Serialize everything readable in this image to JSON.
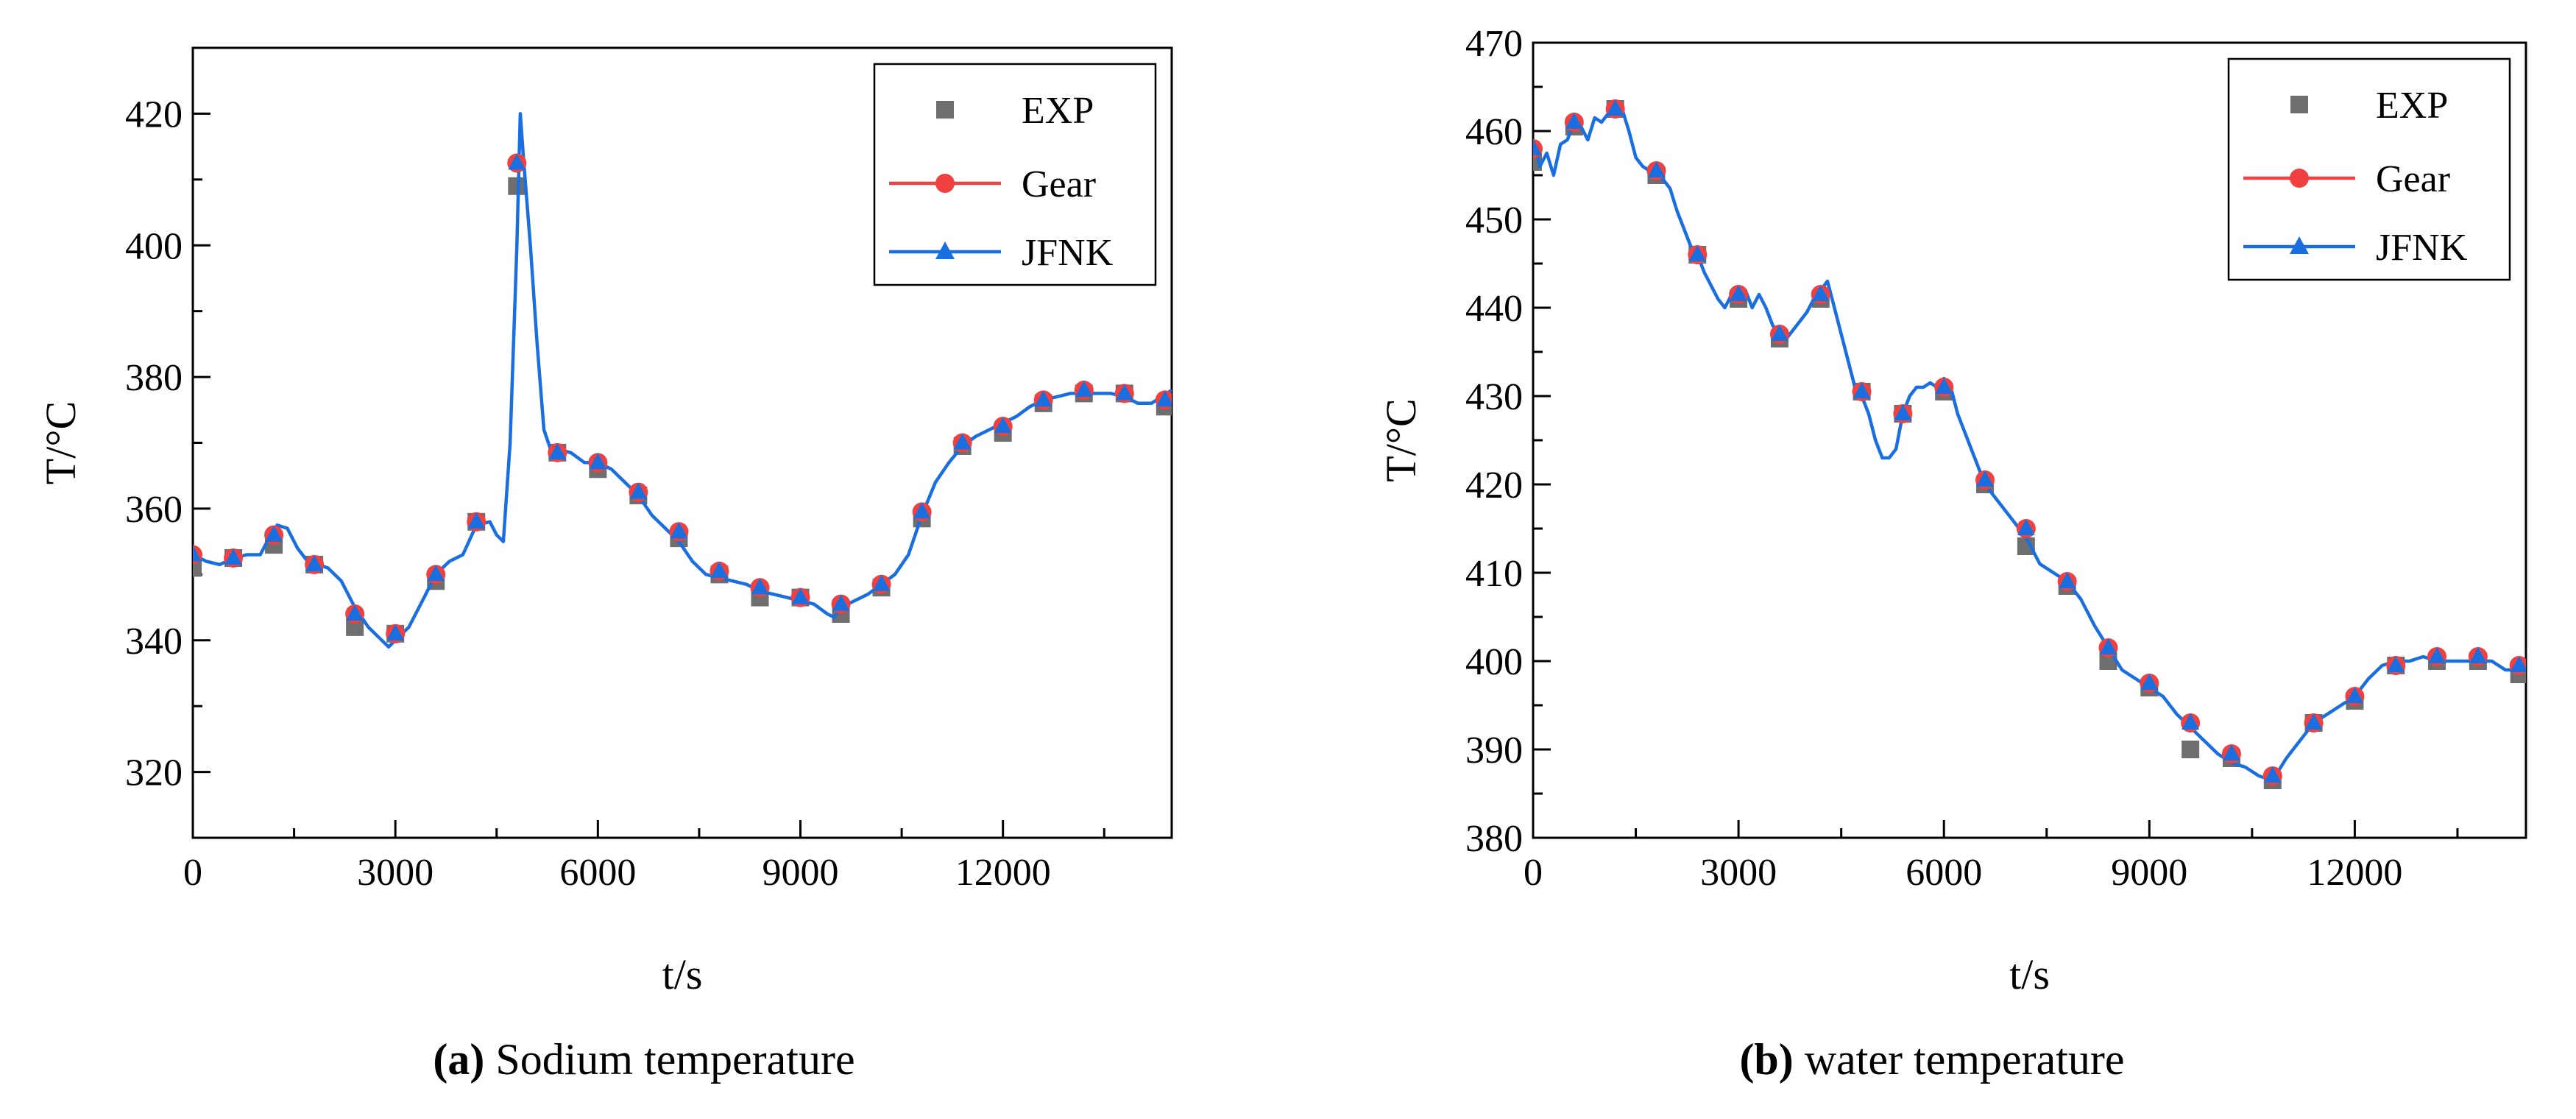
{
  "colors": {
    "exp": "#6e6e6e",
    "gear": "#f04040",
    "jfnk": "#1a6fe0",
    "axis": "#000000"
  },
  "chart_data": [
    {
      "type": "line",
      "panel_letter": "a",
      "caption": {
        "letter": "(a)",
        "text": " Sodium temperature"
      },
      "xlabel": "t/s",
      "ylabel": "T/°C",
      "xlim": [
        0,
        14500
      ],
      "ylim": [
        310,
        430
      ],
      "xticks": [
        0,
        3000,
        6000,
        9000,
        12000
      ],
      "xtick_labels": [
        "0",
        "3000",
        "6000",
        "9000",
        "12000"
      ],
      "yticks": [
        320,
        340,
        360,
        380,
        400,
        420
      ],
      "ytick_labels": [
        "320",
        "340",
        "360",
        "380",
        "400",
        "420"
      ],
      "legend": {
        "position": "top-right",
        "entries": [
          "EXP",
          "Gear",
          "JFNK"
        ]
      },
      "jfnk_line": {
        "x": [
          0,
          200,
          400,
          600,
          800,
          1000,
          1100,
          1250,
          1400,
          1550,
          1700,
          1850,
          2000,
          2200,
          2400,
          2600,
          2800,
          2900,
          3000,
          3200,
          3400,
          3600,
          3800,
          4000,
          4200,
          4400,
          4500,
          4600,
          4700,
          4800,
          4850,
          4900,
          5000,
          5100,
          5200,
          5300,
          5400,
          5600,
          5800,
          6000,
          6200,
          6400,
          6600,
          6800,
          7000,
          7200,
          7400,
          7600,
          7800,
          8000,
          8200,
          8400,
          8600,
          8800,
          9000,
          9200,
          9400,
          9500,
          9600,
          9800,
          10000,
          10200,
          10400,
          10600,
          10800,
          11000,
          11200,
          11400,
          11600,
          11800,
          12000,
          12200,
          12400,
          12600,
          12800,
          13000,
          13200,
          13400,
          13600,
          13800,
          14000,
          14200,
          14500
        ],
        "y": [
          353,
          352,
          351.5,
          352.5,
          353,
          353,
          355,
          357.5,
          357,
          354,
          352,
          351.5,
          351,
          349,
          345,
          342,
          340,
          339,
          340,
          342,
          346,
          350,
          352,
          353,
          357.5,
          358,
          356,
          355,
          370,
          400,
          420,
          413,
          400,
          385,
          372,
          369,
          369,
          368.5,
          367,
          367,
          366,
          364,
          362,
          359,
          357,
          355,
          352,
          350,
          349.5,
          349,
          348.5,
          347.5,
          347,
          346.5,
          346,
          345.5,
          344,
          343.5,
          345,
          346,
          347,
          348.5,
          350,
          353,
          359,
          364,
          367,
          369.5,
          371,
          372,
          373,
          374,
          375.5,
          376.5,
          377,
          377.5,
          377.5,
          377.5,
          377.5,
          377,
          376,
          376,
          378
        ]
      },
      "exp_points": {
        "x": [
          0,
          600,
          1200,
          1800,
          2400,
          3000,
          3600,
          4200,
          4800,
          5400,
          6000,
          6600,
          7200,
          7800,
          8400,
          9000,
          9600,
          10200,
          10800,
          11400,
          12000,
          12600,
          13200,
          13800,
          14400
        ],
        "y": [
          351,
          352.5,
          354.5,
          351.5,
          342,
          341,
          349,
          358,
          409,
          368.5,
          366,
          362,
          355.5,
          350,
          346.5,
          346.5,
          344,
          348,
          358.5,
          369.5,
          371.5,
          376,
          377.5,
          377.5,
          375.5
        ]
      },
      "gear_points": {
        "x": [
          0,
          600,
          1200,
          1800,
          2400,
          3000,
          3600,
          4200,
          4800,
          5400,
          6000,
          6600,
          7200,
          7800,
          8400,
          9000,
          9600,
          10200,
          10800,
          11400,
          12000,
          12600,
          13200,
          13800,
          14400
        ],
        "y": [
          353,
          352.5,
          356,
          351.5,
          344,
          341,
          350,
          358,
          412.5,
          368.5,
          367,
          362.5,
          356.5,
          350.5,
          348,
          346.5,
          345.5,
          348.5,
          359.5,
          370,
          372.5,
          376.5,
          378,
          377.5,
          376.5
        ]
      },
      "jfnk_markers": {
        "x": [
          0,
          600,
          1200,
          1800,
          2400,
          3000,
          3600,
          4200,
          4800,
          5400,
          6000,
          6600,
          7200,
          7800,
          8400,
          9000,
          9600,
          10200,
          10800,
          11400,
          12000,
          12600,
          13200,
          13800,
          14400
        ],
        "y": [
          353,
          352.5,
          356,
          351.5,
          344,
          341,
          350,
          358,
          412.5,
          368.5,
          367,
          362.5,
          356.5,
          350.5,
          348,
          346.5,
          345.5,
          348.5,
          359.5,
          370,
          372.5,
          376.5,
          378,
          377.5,
          376.5
        ]
      }
    },
    {
      "type": "line",
      "panel_letter": "b",
      "caption": {
        "letter": "(b)",
        "text": " water temperature"
      },
      "xlabel": "t/s",
      "ylabel": "T/°C",
      "xlim": [
        0,
        14500
      ],
      "ylim": [
        380,
        470
      ],
      "xticks": [
        0,
        3000,
        6000,
        9000,
        12000
      ],
      "xtick_labels": [
        "0",
        "3000",
        "6000",
        "9000",
        "12000"
      ],
      "yticks": [
        380,
        390,
        400,
        410,
        420,
        430,
        440,
        450,
        460,
        470
      ],
      "ytick_labels": [
        "380",
        "390",
        "400",
        "410",
        "420",
        "430",
        "440",
        "450",
        "460",
        "470"
      ],
      "legend": {
        "position": "top-right",
        "entries": [
          "EXP",
          "Gear",
          "JFNK"
        ]
      },
      "jfnk_line": {
        "x": [
          0,
          100,
          200,
          300,
          400,
          500,
          600,
          700,
          800,
          900,
          1000,
          1100,
          1200,
          1300,
          1400,
          1500,
          1600,
          1700,
          1800,
          1900,
          2000,
          2100,
          2200,
          2300,
          2400,
          2500,
          2600,
          2700,
          2800,
          2900,
          3000,
          3100,
          3200,
          3300,
          3400,
          3500,
          3600,
          3700,
          3800,
          3900,
          4000,
          4100,
          4200,
          4300,
          4400,
          4500,
          4600,
          4700,
          4800,
          4900,
          5000,
          5100,
          5200,
          5300,
          5400,
          5500,
          5600,
          5700,
          5800,
          5900,
          6000,
          6100,
          6200,
          6400,
          6600,
          6800,
          7000,
          7200,
          7400,
          7600,
          7800,
          8000,
          8200,
          8400,
          8600,
          8800,
          9000,
          9200,
          9400,
          9600,
          9800,
          10000,
          10200,
          10400,
          10600,
          10800,
          11000,
          11200,
          11400,
          11600,
          11800,
          12000,
          12200,
          12400,
          12600,
          12800,
          13000,
          13200,
          13400,
          13600,
          13800,
          14000,
          14200,
          14500
        ],
        "y": [
          459,
          456,
          457.5,
          455,
          458.5,
          459,
          461,
          460.5,
          459,
          461.5,
          461,
          462,
          463,
          462.5,
          460,
          457,
          456,
          455.5,
          455,
          454.5,
          453.5,
          451,
          449,
          447,
          446,
          444,
          442.5,
          441,
          440,
          441.5,
          440.5,
          442,
          440,
          441.5,
          440,
          438,
          437,
          436.5,
          437.5,
          438.5,
          439.5,
          441,
          442,
          443,
          440,
          437,
          434,
          431,
          430,
          428,
          425,
          423,
          423,
          424,
          428,
          430,
          431,
          431,
          431.5,
          431,
          432,
          431,
          428,
          424,
          420,
          418,
          416,
          414,
          411,
          410,
          409,
          407,
          404,
          401.5,
          399,
          398,
          397,
          396,
          394,
          392.5,
          391,
          389.5,
          388.5,
          388,
          387,
          386.5,
          389,
          391,
          393,
          394,
          395,
          396,
          398,
          399.5,
          400,
          400,
          400.5,
          400,
          400,
          400,
          400,
          400,
          399,
          399
        ]
      },
      "exp_points": {
        "x": [
          0,
          600,
          1200,
          1800,
          2400,
          3000,
          3600,
          4200,
          4800,
          5400,
          6000,
          6600,
          7200,
          7800,
          8400,
          9000,
          9600,
          10200,
          10800,
          11400,
          12000,
          12600,
          13200,
          13800,
          14400
        ],
        "y": [
          456.5,
          460.5,
          462.5,
          455,
          446,
          441,
          436.5,
          441,
          430.5,
          428,
          430.5,
          420,
          413,
          408.5,
          400,
          397,
          390,
          389,
          386.5,
          393,
          395.5,
          399.5,
          400,
          400,
          398.5
        ]
      },
      "gear_points": {
        "x": [
          0,
          600,
          1200,
          1800,
          2400,
          3000,
          3600,
          4200,
          4800,
          5400,
          6000,
          6600,
          7200,
          7800,
          8400,
          9000,
          9600,
          10200,
          10800,
          11400,
          12000,
          12600,
          13200,
          13800,
          14400
        ],
        "y": [
          458,
          461,
          462.5,
          455.5,
          446,
          441.5,
          437,
          441.5,
          430.5,
          428,
          431,
          420.5,
          415,
          409,
          401.5,
          397.5,
          393,
          389.5,
          387,
          393,
          396,
          399.5,
          400.5,
          400.5,
          399.5
        ]
      },
      "jfnk_markers": {
        "x": [
          0,
          600,
          1200,
          1800,
          2400,
          3000,
          3600,
          4200,
          4800,
          5400,
          6000,
          6600,
          7200,
          7800,
          8400,
          9000,
          9600,
          10200,
          10800,
          11400,
          12000,
          12600,
          13200,
          13800,
          14400
        ],
        "y": [
          458,
          461,
          462.5,
          455.5,
          446,
          441.5,
          437,
          441.5,
          430.5,
          428,
          431,
          420.5,
          415,
          409,
          401.5,
          397.5,
          393,
          389.5,
          387,
          393,
          396,
          399.5,
          400.5,
          400.5,
          399.5
        ]
      }
    }
  ]
}
